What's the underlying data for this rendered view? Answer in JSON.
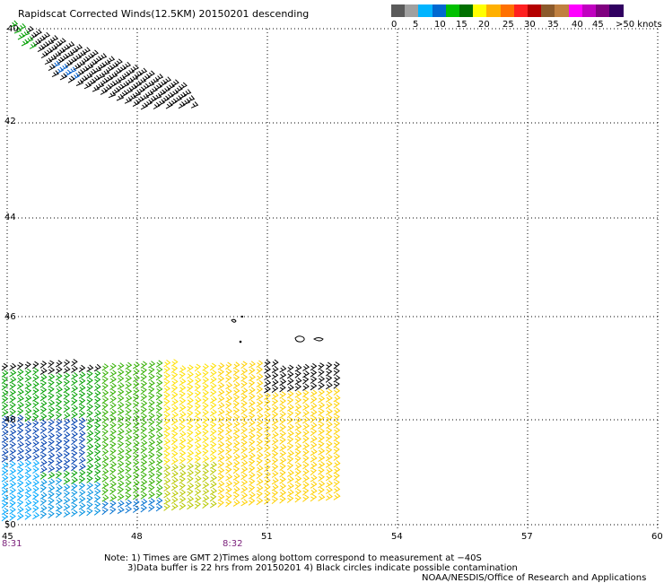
{
  "header": {
    "title": "Rapidscat Corrected Winds(12.5KM) 20150201 descending"
  },
  "legend": {
    "colors": [
      "#5a5a5a",
      "#a0a0a0",
      "#00b4ff",
      "#0068d0",
      "#00c000",
      "#007000",
      "#ffff00",
      "#ffb000",
      "#ff7000",
      "#ff2020",
      "#b40000",
      "#8b5a2b",
      "#c08040",
      "#ff00ff",
      "#c000c0",
      "#800080",
      "#300060"
    ],
    "labels": [
      "0",
      "5",
      "10",
      "15",
      "20",
      "25",
      "30",
      "35",
      "40",
      "45",
      ">50 knots"
    ]
  },
  "axes": {
    "lat_labels": [
      "40",
      "42",
      "44",
      "46",
      "48",
      "50"
    ],
    "lon_labels": [
      "45",
      "48",
      "51",
      "54",
      "57",
      "60"
    ]
  },
  "times": [
    "8:31",
    "8:32"
  ],
  "notes": {
    "line1": "Note: 1) Times are GMT 2)Times along bottom correspond to measurement at −40S",
    "line2": "3)Data buffer is 22 hrs from 20150201 4) Black circles indicate possible contamination",
    "line3": "NOAA/NESDIS/Office of Research and Applications"
  }
}
